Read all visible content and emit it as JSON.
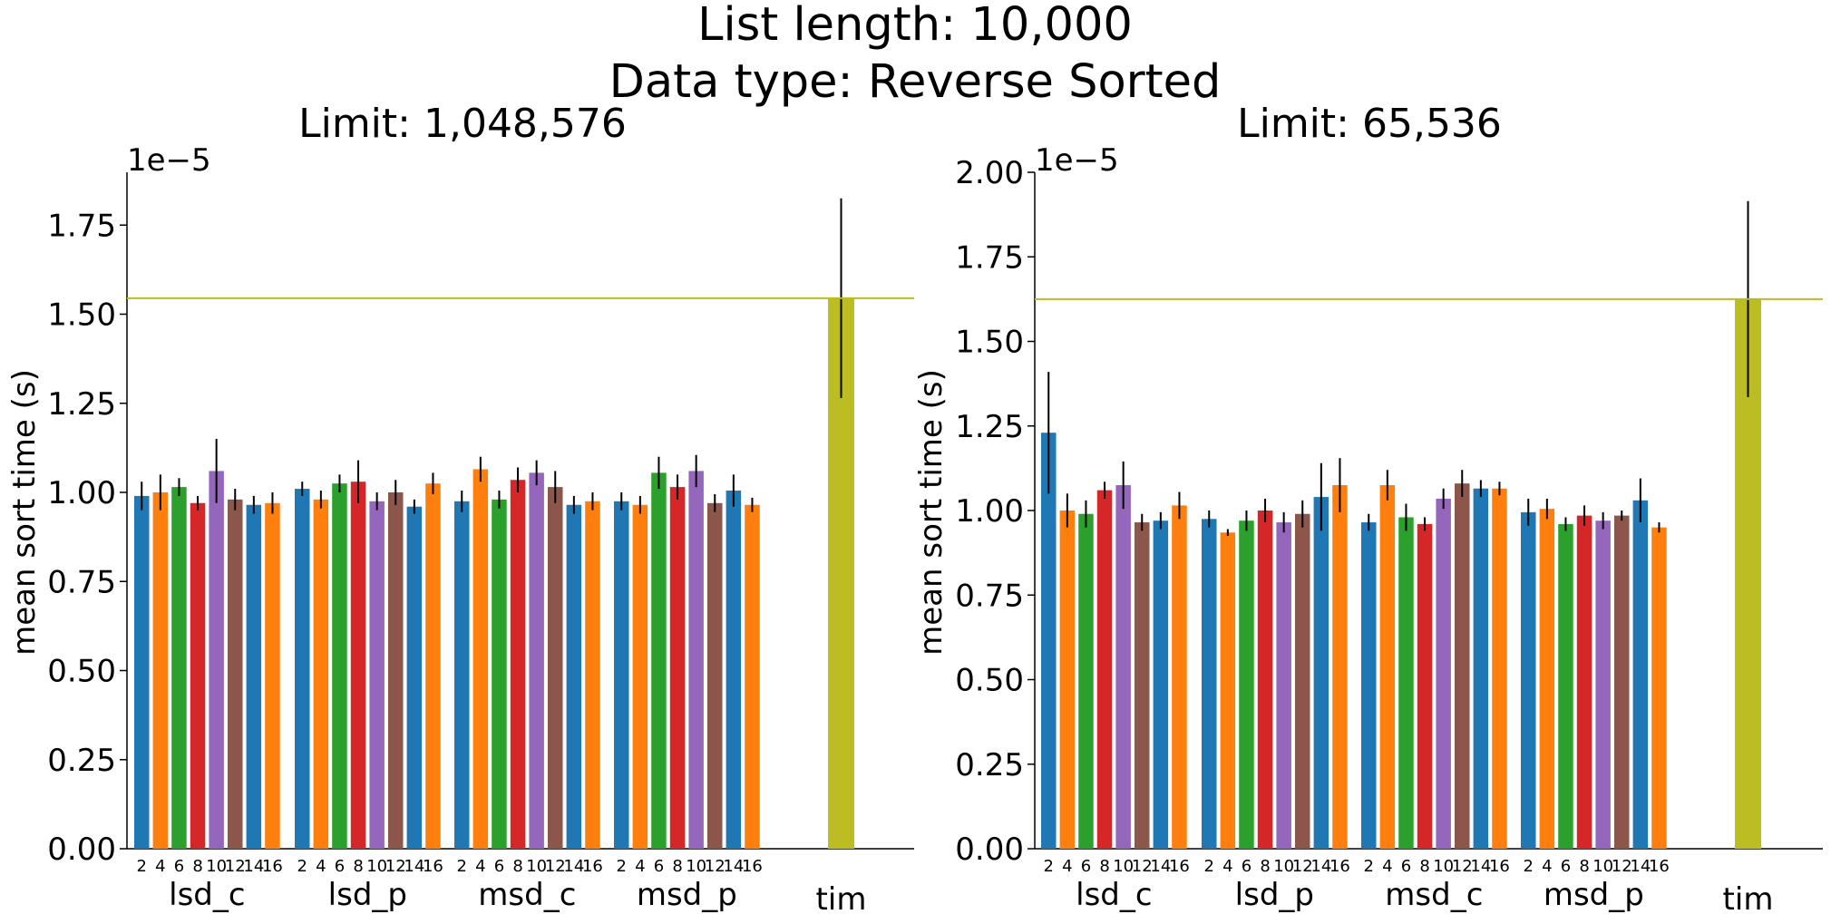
{
  "figure": {
    "title_line1": "List length: 10,000",
    "title_line2": "Data type: Reverse Sorted"
  },
  "colors": [
    "#1f77b4",
    "#ff7f0e",
    "#2ca02c",
    "#d62728",
    "#9467bd",
    "#8c564b",
    "#1f77b4",
    "#ff7f0e"
  ],
  "tim_color": "#bcbd22",
  "chart_data": [
    {
      "type": "bar",
      "title": "Limit: 1,048,576",
      "ylabel": "mean sort time (s)",
      "scale_label": "1e−5",
      "ylim": [
        0,
        1.9
      ],
      "yticks": [
        "0.00",
        "0.25",
        "0.50",
        "0.75",
        "1.00",
        "1.25",
        "1.50",
        "1.75"
      ],
      "subcategories": [
        "2",
        "4",
        "6",
        "8",
        "10",
        "12",
        "14",
        "16"
      ],
      "groups": [
        {
          "name": "lsd_c",
          "values": [
            0.99,
            1.0,
            1.015,
            0.97,
            1.06,
            0.98,
            0.965,
            0.97
          ],
          "errors": [
            0.04,
            0.05,
            0.025,
            0.02,
            0.09,
            0.03,
            0.025,
            0.03
          ]
        },
        {
          "name": "lsd_p",
          "values": [
            1.01,
            0.98,
            1.025,
            1.03,
            0.975,
            1.0,
            0.96,
            1.025
          ],
          "errors": [
            0.02,
            0.025,
            0.025,
            0.06,
            0.025,
            0.035,
            0.02,
            0.03
          ]
        },
        {
          "name": "msd_c",
          "values": [
            0.975,
            1.065,
            0.98,
            1.035,
            1.055,
            1.015,
            0.965,
            0.975
          ],
          "errors": [
            0.03,
            0.035,
            0.025,
            0.035,
            0.035,
            0.045,
            0.025,
            0.025
          ]
        },
        {
          "name": "msd_p",
          "values": [
            0.975,
            0.965,
            1.055,
            1.015,
            1.06,
            0.97,
            1.005,
            0.965
          ],
          "errors": [
            0.025,
            0.025,
            0.045,
            0.035,
            0.045,
            0.025,
            0.045,
            0.02
          ]
        }
      ],
      "tim": {
        "name": "tim",
        "value": 1.545,
        "error": 0.28
      },
      "hline": 1.545
    },
    {
      "type": "bar",
      "title": "Limit: 65,536",
      "ylabel": "mean sort time (s)",
      "scale_label": "1e−5",
      "ylim": [
        0,
        2.0
      ],
      "yticks": [
        "0.00",
        "0.25",
        "0.50",
        "0.75",
        "1.00",
        "1.25",
        "1.50",
        "1.75",
        "2.00"
      ],
      "subcategories": [
        "2",
        "4",
        "6",
        "8",
        "10",
        "12",
        "14",
        "16"
      ],
      "groups": [
        {
          "name": "lsd_c",
          "values": [
            1.23,
            1.0,
            0.99,
            1.06,
            1.075,
            0.965,
            0.97,
            1.015
          ],
          "errors": [
            0.18,
            0.05,
            0.04,
            0.025,
            0.07,
            0.025,
            0.025,
            0.04
          ]
        },
        {
          "name": "lsd_p",
          "values": [
            0.975,
            0.935,
            0.97,
            1.0,
            0.965,
            0.99,
            1.04,
            1.075
          ],
          "errors": [
            0.025,
            0.01,
            0.03,
            0.035,
            0.03,
            0.04,
            0.1,
            0.08
          ]
        },
        {
          "name": "msd_c",
          "values": [
            0.965,
            1.075,
            0.98,
            0.96,
            1.035,
            1.08,
            1.065,
            1.065
          ],
          "errors": [
            0.025,
            0.045,
            0.04,
            0.02,
            0.03,
            0.04,
            0.025,
            0.02
          ]
        },
        {
          "name": "msd_p",
          "values": [
            0.995,
            1.005,
            0.96,
            0.985,
            0.97,
            0.985,
            1.03,
            0.95
          ],
          "errors": [
            0.04,
            0.03,
            0.02,
            0.03,
            0.025,
            0.015,
            0.065,
            0.015
          ]
        }
      ],
      "tim": {
        "name": "tim",
        "value": 1.625,
        "error": 0.29
      },
      "hline": 1.625
    }
  ]
}
